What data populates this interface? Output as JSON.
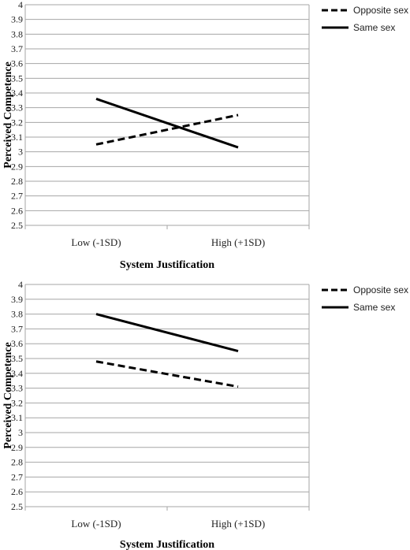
{
  "chart_data": [
    {
      "type": "line",
      "title": "",
      "xlabel": "System Justification",
      "ylabel": "Perceived Competence",
      "categories": [
        "Low (-1SD)",
        "High (+1SD)"
      ],
      "ylim": [
        2.5,
        4
      ],
      "yticks": [
        "2.5",
        "2.6",
        "2.7",
        "2.8",
        "2.9",
        "3",
        "3.1",
        "3.2",
        "3.3",
        "3.4",
        "3.5",
        "3.6",
        "3.7",
        "3.8",
        "3.9",
        "4"
      ],
      "grid": true,
      "legend_position": "top-right",
      "series": [
        {
          "name": "Opposite sex",
          "style": "dashed",
          "color": "#000000",
          "values": [
            3.05,
            3.25
          ]
        },
        {
          "name": "Same sex",
          "style": "solid",
          "color": "#000000",
          "values": [
            3.36,
            3.03
          ]
        }
      ]
    },
    {
      "type": "line",
      "title": "",
      "xlabel": "System Justification",
      "ylabel": "Perceived Competence",
      "categories": [
        "Low (-1SD)",
        "High (+1SD)"
      ],
      "ylim": [
        2.5,
        4
      ],
      "yticks": [
        "2.5",
        "2.6",
        "2.7",
        "2.8",
        "2.9",
        "3",
        "3.1",
        "3.2",
        "3.3",
        "3.4",
        "3.5",
        "3.6",
        "3.7",
        "3.8",
        "3.9",
        "4"
      ],
      "grid": true,
      "legend_position": "top-right",
      "series": [
        {
          "name": "Opposite sex",
          "style": "dashed",
          "color": "#000000",
          "values": [
            3.48,
            3.31
          ]
        },
        {
          "name": "Same sex",
          "style": "solid",
          "color": "#000000",
          "values": [
            3.8,
            3.55
          ]
        }
      ]
    }
  ]
}
